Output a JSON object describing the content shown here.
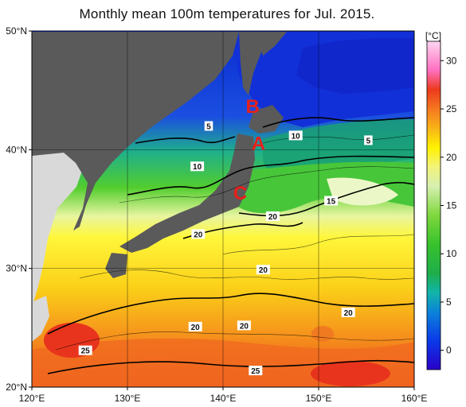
{
  "title": "Monthly mean 100m temperatures for Jul. 2015.",
  "map": {
    "lon_range": [
      120,
      160
    ],
    "lat_range": [
      20,
      50
    ],
    "lon_ticks": [
      {
        "value": 120,
        "label": "120°E"
      },
      {
        "value": 130,
        "label": "130°E"
      },
      {
        "value": 140,
        "label": "140°E"
      },
      {
        "value": 150,
        "label": "150°E"
      },
      {
        "value": 160,
        "label": "160°E"
      }
    ],
    "lat_ticks": [
      {
        "value": 20,
        "label": "20°N"
      },
      {
        "value": 30,
        "label": "30°N"
      },
      {
        "value": 40,
        "label": "40°N"
      },
      {
        "value": 50,
        "label": "50°N"
      }
    ],
    "colors": {
      "land": "#5a5a5a",
      "neighbor_land": "#d9d9d9",
      "ocean_warm": "#f5a623",
      "grid": "#000000"
    },
    "markers": [
      {
        "label": "A",
        "lon": 143.7,
        "lat": 40.0
      },
      {
        "label": "B",
        "lon": 143.1,
        "lat": 43.1
      },
      {
        "label": "C",
        "lon": 141.8,
        "lat": 35.8
      }
    ],
    "contour_labels": [
      {
        "text": "5",
        "lon": 138.5,
        "lat": 42.0
      },
      {
        "text": "10",
        "lon": 147.6,
        "lat": 41.2
      },
      {
        "text": "5",
        "lon": 155.2,
        "lat": 40.8
      },
      {
        "text": "10",
        "lon": 137.3,
        "lat": 38.6
      },
      {
        "text": "15",
        "lon": 151.3,
        "lat": 35.7
      },
      {
        "text": "20",
        "lon": 145.2,
        "lat": 34.4
      },
      {
        "text": "20",
        "lon": 137.4,
        "lat": 32.9
      },
      {
        "text": "20",
        "lon": 144.2,
        "lat": 29.9
      },
      {
        "text": "20",
        "lon": 153.1,
        "lat": 26.3
      },
      {
        "text": "20",
        "lon": 137.1,
        "lat": 25.1
      },
      {
        "text": "20",
        "lon": 142.2,
        "lat": 25.2
      },
      {
        "text": "25",
        "lon": 125.6,
        "lat": 23.1
      },
      {
        "text": "25",
        "lon": 143.4,
        "lat": 21.4
      }
    ]
  },
  "colorbar": {
    "unit": "[°C]",
    "min": -2,
    "max": 32,
    "ticks": [
      0,
      5,
      10,
      15,
      20,
      25,
      30
    ],
    "stops": [
      {
        "value": -2,
        "color": "#2a00c8"
      },
      {
        "value": 1,
        "color": "#0a3ae8"
      },
      {
        "value": 4,
        "color": "#0c84d8"
      },
      {
        "value": 6,
        "color": "#12b4a8"
      },
      {
        "value": 8,
        "color": "#1fae4a"
      },
      {
        "value": 11,
        "color": "#38c22c"
      },
      {
        "value": 14,
        "color": "#7fd83e"
      },
      {
        "value": 17,
        "color": "#d6f0b0"
      },
      {
        "value": 19,
        "color": "#f3f37a"
      },
      {
        "value": 21,
        "color": "#fff200"
      },
      {
        "value": 23,
        "color": "#f8b418"
      },
      {
        "value": 25,
        "color": "#f57820"
      },
      {
        "value": 27,
        "color": "#ec3a1c"
      },
      {
        "value": 29,
        "color": "#ff6fc0"
      },
      {
        "value": 32,
        "color": "#ffd6f2"
      }
    ]
  }
}
